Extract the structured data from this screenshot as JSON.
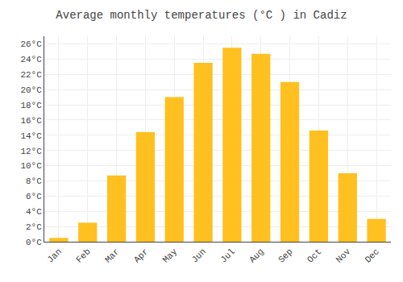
{
  "chart_data": {
    "type": "bar",
    "title": "Average monthly temperatures (°C ) in Cadiz",
    "categories": [
      "Jan",
      "Feb",
      "Mar",
      "Apr",
      "May",
      "Jun",
      "Jul",
      "Aug",
      "Sep",
      "Oct",
      "Nov",
      "Dec"
    ],
    "values": [
      0.5,
      2.5,
      8.7,
      14.4,
      19.0,
      23.5,
      25.5,
      24.7,
      21.0,
      14.6,
      9.0,
      3.0
    ],
    "color": "#FFC020",
    "ylim": [
      0,
      27
    ],
    "yticks": [
      {
        "value": 0,
        "label": "0°C"
      },
      {
        "value": 2,
        "label": "2°C"
      },
      {
        "value": 4,
        "label": "4°C"
      },
      {
        "value": 6,
        "label": "6°C"
      },
      {
        "value": 8,
        "label": "8°C"
      },
      {
        "value": 10,
        "label": "10°C"
      },
      {
        "value": 12,
        "label": "12°C"
      },
      {
        "value": 14,
        "label": "14°C"
      },
      {
        "value": 16,
        "label": "16°C"
      },
      {
        "value": 18,
        "label": "18°C"
      },
      {
        "value": 20,
        "label": "20°C"
      },
      {
        "value": 22,
        "label": "22°C"
      },
      {
        "value": 24,
        "label": "24°C"
      },
      {
        "value": 26,
        "label": "26°C"
      }
    ],
    "grid": true
  }
}
